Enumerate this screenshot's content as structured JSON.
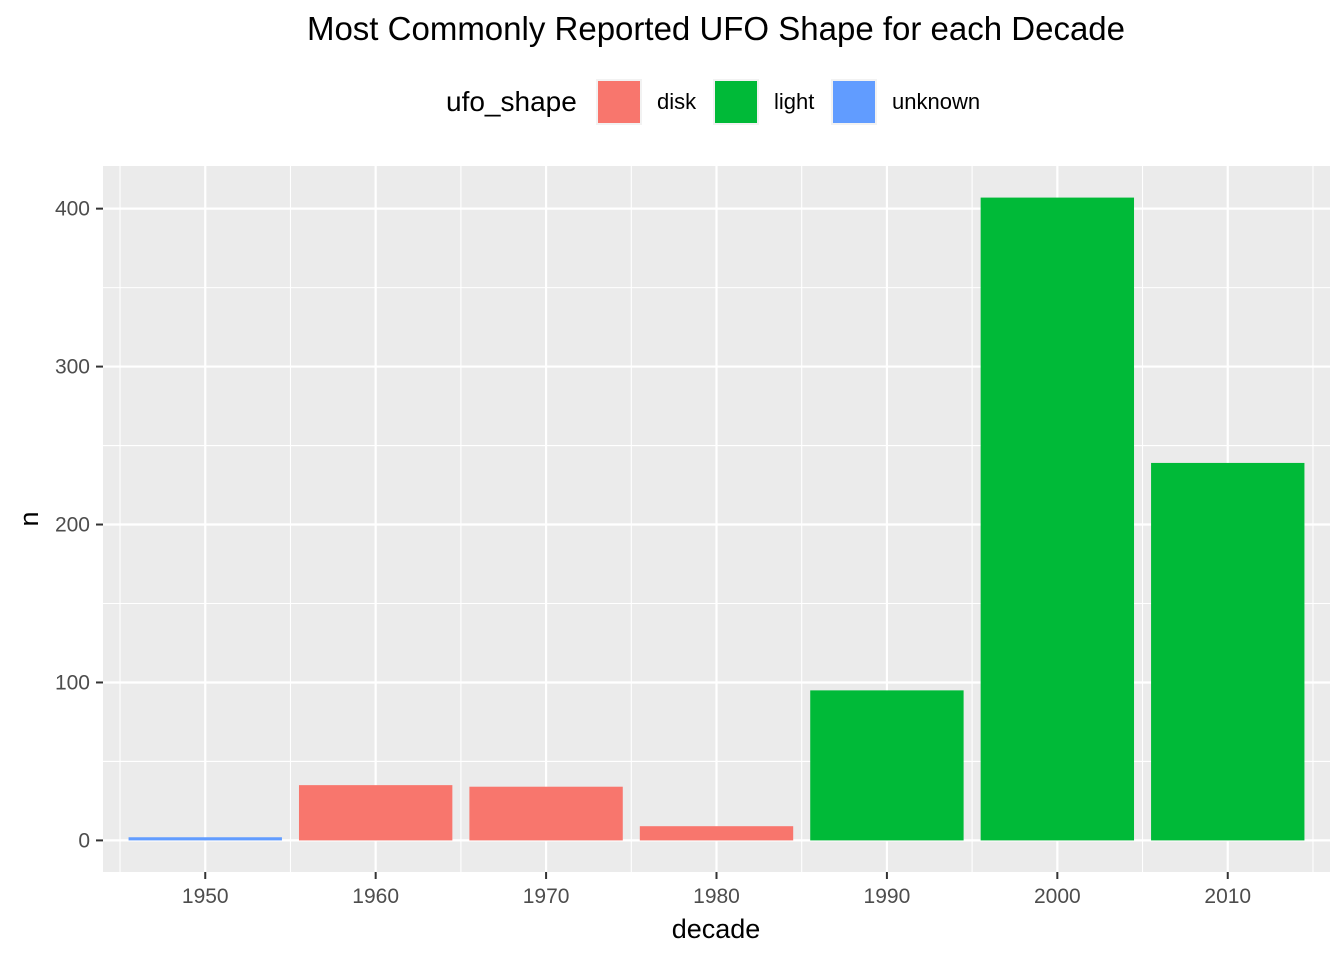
{
  "chart_data": {
    "type": "bar",
    "title": "Most Commonly Reported UFO Shape for each Decade",
    "xlabel": "decade",
    "ylabel": "n",
    "categories": [
      "1950",
      "1960",
      "1970",
      "1980",
      "1990",
      "2000",
      "2010"
    ],
    "values": [
      2,
      35,
      34,
      9,
      95,
      407,
      239
    ],
    "fill_group": [
      "unknown",
      "disk",
      "disk",
      "disk",
      "light",
      "light",
      "light"
    ],
    "ylim": [
      -20,
      427
    ],
    "y_ticks": [
      "0",
      "100",
      "200",
      "300",
      "400"
    ],
    "grid": true,
    "legend": {
      "title": "ufo_shape",
      "position": "top",
      "entries": [
        {
          "label": "disk",
          "color": "#F8766D"
        },
        {
          "label": "light",
          "color": "#00BA38"
        },
        {
          "label": "unknown",
          "color": "#619CFF"
        }
      ]
    },
    "panel_background": "#EBEBEB",
    "gridline_color": "#FFFFFF"
  }
}
